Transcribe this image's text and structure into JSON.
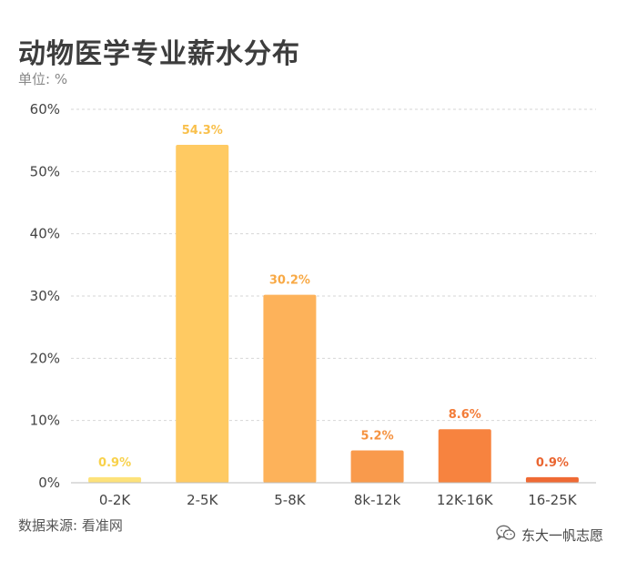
{
  "header": {
    "title": "动物医学专业薪水分布",
    "unit": "单位: %"
  },
  "footer": {
    "source": "数据来源: 看准网",
    "brand": "东大一帆志愿",
    "brand_icon": "wechat-icon"
  },
  "chart_data": {
    "type": "bar",
    "categories": [
      "0-2K",
      "2-5K",
      "5-8K",
      "8k-12k",
      "12K-16K",
      "16-25K"
    ],
    "values": [
      0.9,
      54.3,
      30.2,
      5.2,
      8.6,
      0.9
    ],
    "data_labels": [
      "0.9%",
      "54.3%",
      "30.2%",
      "5.2%",
      "8.6%",
      "0.9%"
    ],
    "colors": [
      "#fde27a",
      "#ffca62",
      "#fdb25a",
      "#f99a4c",
      "#f7833f",
      "#ef6a34"
    ],
    "label_colors": [
      "#f8d14a",
      "#f9c04c",
      "#f8a945",
      "#f59240",
      "#f37c38",
      "#ea6530"
    ],
    "title": "动物医学专业薪水分布",
    "xlabel": "",
    "ylabel": "",
    "ylim": [
      0,
      60
    ],
    "yticks": [
      0,
      10,
      20,
      30,
      40,
      50,
      60
    ],
    "ytick_labels": [
      "0%",
      "10%",
      "20%",
      "30%",
      "40%",
      "50%",
      "60%"
    ],
    "grid": true,
    "legend": "none"
  }
}
